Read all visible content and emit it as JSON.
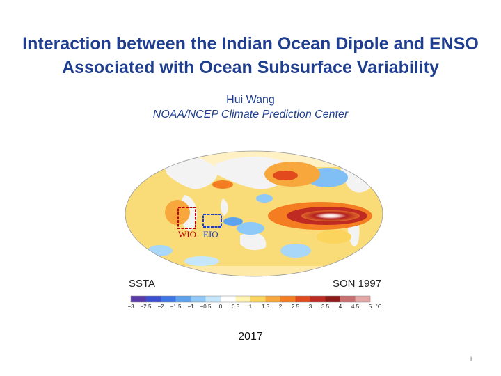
{
  "slide": {
    "title_line1": "Interaction between the Indian Ocean Dipole and ENSO",
    "title_line2": "Associated with Ocean Subsurface Variability",
    "author": "Hui Wang",
    "affiliation": "NOAA/NCEP Climate Prediction Center",
    "year": "2017",
    "page_number": "1"
  },
  "figure": {
    "variable_label": "SSTA",
    "season_label": "SON 1997",
    "boxes": [
      {
        "label": "WIO",
        "color": "#c00000"
      },
      {
        "label": "EIO",
        "color": "#1a3fd6"
      }
    ],
    "colorbar": {
      "unit": "°C",
      "ticks": [
        "−3",
        "−2.5",
        "−2",
        "−1.5",
        "−1",
        "−0.5",
        "0",
        "0.5",
        "1",
        "1.5",
        "2",
        "2.5",
        "3",
        "3.5",
        "4",
        "4.5",
        "5"
      ],
      "colors": [
        "#5a3aa8",
        "#3c4fd0",
        "#3d77e6",
        "#5ea3f0",
        "#8ec9f7",
        "#c6e7fb",
        "#ffffff",
        "#fff3b0",
        "#fbd45e",
        "#f7a73c",
        "#f47d22",
        "#e24a1e",
        "#bf2a22",
        "#8f1b1b",
        "#c96f6f",
        "#e5a6a6"
      ]
    }
  }
}
